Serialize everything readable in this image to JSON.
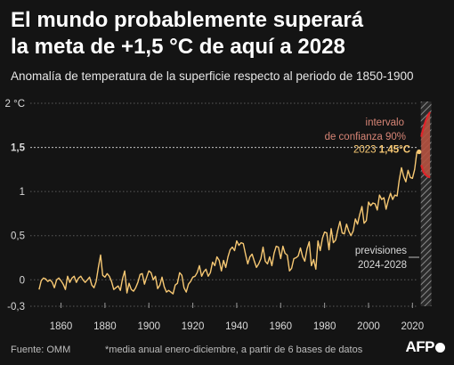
{
  "header": {
    "title_line1": "El mundo probablemente superará",
    "title_line2": "la meta de +1,5 °C de aquí a 2028",
    "subtitle": "Anomalía de temperatura de la superficie respecto al periodo de 1850-1900"
  },
  "footer": {
    "source": "Fuente: OMM",
    "note": "*media anual enero-diciembre, a partir de 6 bases de datos",
    "logo_text": "AFP"
  },
  "colors": {
    "background": "#141414",
    "line": "#f7c873",
    "band": "#c0392b",
    "band_fill": "#b4513f",
    "band_label": "#d88576",
    "grid": "#5a5a5a",
    "axis_text": "#d9d9d9"
  },
  "chart_data": {
    "type": "line",
    "title": "El mundo probablemente superará la meta de +1,5 °C de aquí a 2028",
    "ylabel": "Anomalía de temperatura de la superficie respecto al periodo de 1850-1900",
    "xlim": [
      1846,
      2030
    ],
    "ylim": [
      -0.3,
      2
    ],
    "x_ticks": [
      1860,
      1880,
      1900,
      1920,
      1940,
      1960,
      1980,
      2000,
      2020
    ],
    "y_ticks": [
      {
        "value": 2,
        "label": "2 °C"
      },
      {
        "value": 1.5,
        "label": "1,5"
      },
      {
        "value": 1,
        "label": "1"
      },
      {
        "value": 0.5,
        "label": "0,5"
      },
      {
        "value": 0,
        "label": "0"
      },
      {
        "value": -0.3,
        "label": "-0,3"
      }
    ],
    "grid": true,
    "series": [
      {
        "x_start": 1850,
        "values": [
          -0.11,
          -0.01,
          0.02,
          0.01,
          -0.02,
          0.0,
          -0.03,
          -0.09,
          0.0,
          0.02,
          -0.01,
          -0.05,
          -0.11,
          0.04,
          -0.03,
          0.02,
          0.04,
          -0.03,
          0.02,
          0.04,
          0.0,
          -0.03,
          0.0,
          0.03,
          -0.06,
          -0.09,
          -0.02,
          0.14,
          0.28,
          0.05,
          0.03,
          0.07,
          0.04,
          -0.02,
          -0.11,
          -0.09,
          -0.07,
          -0.12,
          0.01,
          0.1,
          -0.15,
          -0.04,
          -0.11,
          -0.13,
          -0.09,
          -0.03,
          0.06,
          0.07,
          -0.05,
          0.03,
          0.1,
          0.08,
          0.0,
          0.04,
          -0.1,
          -0.06,
          0.03,
          -0.08,
          -0.14,
          -0.12,
          -0.14,
          -0.16,
          -0.06,
          -0.04,
          0.08,
          0.05,
          -0.09,
          -0.14,
          -0.05,
          -0.02,
          0.03,
          0.04,
          0.08,
          0.16,
          0.04,
          0.09,
          0.12,
          0.04,
          0.08,
          0.2,
          0.16,
          0.26,
          0.22,
          0.1,
          0.22,
          0.14,
          0.26,
          0.34,
          0.37,
          0.33,
          0.44,
          0.39,
          0.42,
          0.41,
          0.29,
          0.18,
          0.26,
          0.29,
          0.21,
          0.14,
          0.18,
          0.24,
          0.37,
          0.21,
          0.18,
          0.26,
          0.16,
          0.3,
          0.38,
          0.37,
          0.24,
          0.38,
          0.3,
          0.28,
          0.1,
          0.13,
          0.24,
          0.25,
          0.27,
          0.36,
          0.26,
          0.21,
          0.35,
          0.43,
          0.16,
          0.23,
          0.12,
          0.44,
          0.33,
          0.47,
          0.54,
          0.53,
          0.34,
          0.58,
          0.42,
          0.45,
          0.56,
          0.66,
          0.53,
          0.52,
          0.63,
          0.55,
          0.5,
          0.55,
          0.69,
          0.63,
          0.74,
          0.83,
          0.64,
          0.67,
          0.88,
          0.84,
          0.87,
          0.86,
          0.79,
          0.96,
          0.91,
          0.93,
          0.8,
          0.9,
          0.98,
          0.91,
          0.96,
          0.95,
          1.13,
          1.27,
          1.17,
          1.11,
          1.24,
          1.16,
          1.15,
          1.25,
          1.45
        ]
      }
    ],
    "annotations": [
      {
        "text": "2023 ",
        "value_text": "1,45°C",
        "x": 2023,
        "y": 1.45
      },
      {
        "text_line1": "intervalo",
        "text_line2": "de confianza 90%"
      },
      {
        "text_line1": "previsiones",
        "text_line2": "2024-2028"
      }
    ],
    "forecast": {
      "x_range": [
        2024,
        2028
      ],
      "upper": [
        1.62,
        1.72,
        1.8,
        1.86,
        1.9
      ],
      "lower": [
        1.3,
        1.22,
        1.19,
        1.17,
        1.16
      ]
    }
  }
}
